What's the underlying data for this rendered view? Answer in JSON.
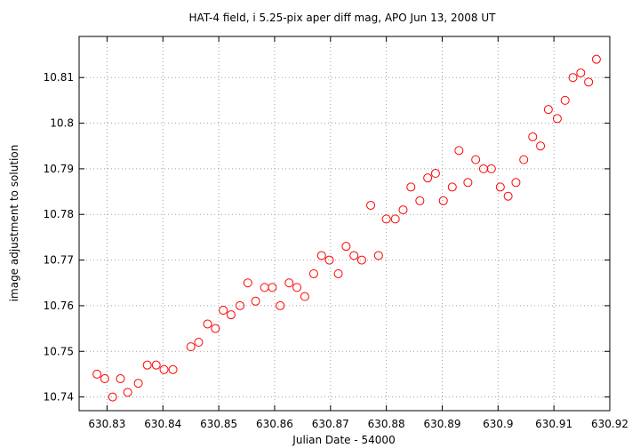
{
  "chart_data": {
    "type": "scatter",
    "title": "HAT-4 field, i 5.25-pix aper diff mag, APO Jun 13, 2008 UT",
    "xlabel": "Julian Date - 54000",
    "ylabel": "image adjustment to solution",
    "xlim": [
      630.825,
      630.92
    ],
    "ylim": [
      10.737,
      10.819
    ],
    "grid": true,
    "legend": "none",
    "marker": "open-circle",
    "marker_color": "#ff0000",
    "x_ticks": [
      630.83,
      630.84,
      630.85,
      630.86,
      630.87,
      630.88,
      630.89,
      630.9,
      630.91,
      630.92
    ],
    "x_tick_labels": [
      "630.83",
      "630.84",
      "630.85",
      "630.86",
      "630.87",
      "630.88",
      "630.89",
      "630.9",
      "630.91",
      "630.92"
    ],
    "y_ticks": [
      10.74,
      10.75,
      10.76,
      10.77,
      10.78,
      10.79,
      10.8,
      10.81
    ],
    "y_tick_labels": [
      "10.74",
      "10.75",
      "10.76",
      "10.77",
      "10.78",
      "10.79",
      "10.8",
      "10.81"
    ],
    "points": [
      [
        630.8282,
        10.745
      ],
      [
        630.8296,
        10.744
      ],
      [
        630.831,
        10.74
      ],
      [
        630.8324,
        10.744
      ],
      [
        630.8337,
        10.741
      ],
      [
        630.8356,
        10.743
      ],
      [
        630.8372,
        10.747
      ],
      [
        630.8388,
        10.747
      ],
      [
        630.8402,
        10.746
      ],
      [
        630.8418,
        10.746
      ],
      [
        630.845,
        10.751
      ],
      [
        630.8464,
        10.752
      ],
      [
        630.848,
        10.756
      ],
      [
        630.8494,
        10.755
      ],
      [
        630.8508,
        10.759
      ],
      [
        630.8522,
        10.758
      ],
      [
        630.8538,
        10.76
      ],
      [
        630.8552,
        10.765
      ],
      [
        630.8566,
        10.761
      ],
      [
        630.8582,
        10.764
      ],
      [
        630.8596,
        10.764
      ],
      [
        630.861,
        10.76
      ],
      [
        630.8626,
        10.765
      ],
      [
        630.864,
        10.764
      ],
      [
        630.8654,
        10.762
      ],
      [
        630.867,
        10.767
      ],
      [
        630.8684,
        10.771
      ],
      [
        630.8698,
        10.77
      ],
      [
        630.8714,
        10.767
      ],
      [
        630.8728,
        10.773
      ],
      [
        630.8742,
        10.771
      ],
      [
        630.8756,
        10.77
      ],
      [
        630.8772,
        10.782
      ],
      [
        630.8786,
        10.771
      ],
      [
        630.88,
        10.779
      ],
      [
        630.8816,
        10.779
      ],
      [
        630.883,
        10.781
      ],
      [
        630.8844,
        10.786
      ],
      [
        630.886,
        10.783
      ],
      [
        630.8874,
        10.788
      ],
      [
        630.8888,
        10.789
      ],
      [
        630.8902,
        10.783
      ],
      [
        630.8918,
        10.786
      ],
      [
        630.893,
        10.794
      ],
      [
        630.8946,
        10.787
      ],
      [
        630.896,
        10.792
      ],
      [
        630.8974,
        10.79
      ],
      [
        630.8988,
        10.79
      ],
      [
        630.9004,
        10.786
      ],
      [
        630.9018,
        10.784
      ],
      [
        630.9032,
        10.787
      ],
      [
        630.9046,
        10.792
      ],
      [
        630.9062,
        10.797
      ],
      [
        630.9076,
        10.795
      ],
      [
        630.909,
        10.803
      ],
      [
        630.9106,
        10.801
      ],
      [
        630.912,
        10.805
      ],
      [
        630.9134,
        10.81
      ],
      [
        630.9148,
        10.811
      ],
      [
        630.9162,
        10.809
      ],
      [
        630.9176,
        10.814
      ]
    ]
  }
}
